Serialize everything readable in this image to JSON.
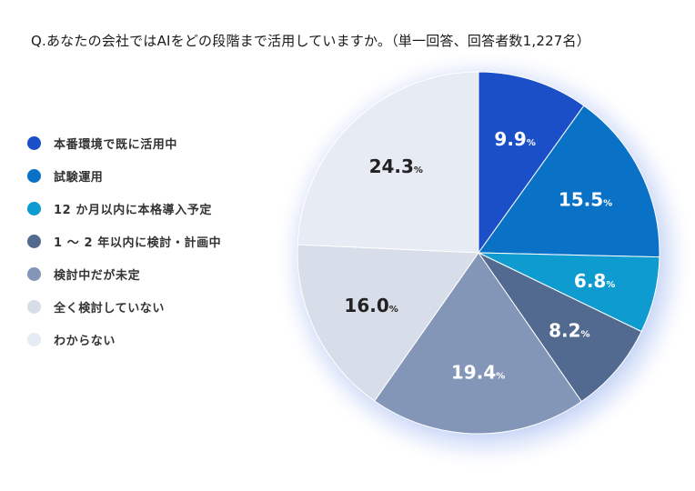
{
  "title": "Q.あなたの会社ではAIをどの段階まで活用していますか。（単一回答、回答者数1,227名）",
  "chart_data": {
    "type": "pie",
    "title": "Q.あなたの会社ではAIをどの段階まで活用していますか。（単一回答、回答者数1,227名）",
    "unit": "%",
    "start": "top, clockwise",
    "legend_position": "left",
    "slices": [
      {
        "label": "本番環境で既に活用中",
        "value": 9.9,
        "color": "#1a4fc8",
        "text_color": "#ffffff"
      },
      {
        "label": "試験運用",
        "value": 15.5,
        "color": "#0a72c6",
        "text_color": "#ffffff"
      },
      {
        "label": "12 か月以内に本格導入予定",
        "value": 6.8,
        "color": "#0d9bd0",
        "text_color": "#ffffff"
      },
      {
        "label": "1 〜 2 年以内に検討・計画中",
        "value": 8.2,
        "color": "#536a90",
        "text_color": "#ffffff"
      },
      {
        "label": "検討中だが未定",
        "value": 19.4,
        "color": "#8396b8",
        "text_color": "#ffffff"
      },
      {
        "label": "全く検討していない",
        "value": 16.0,
        "color": "#d8dee9",
        "text_color": "#222222"
      },
      {
        "label": "わからない",
        "value": 24.3,
        "color": "#e7ebf3",
        "text_color": "#222222"
      }
    ]
  }
}
